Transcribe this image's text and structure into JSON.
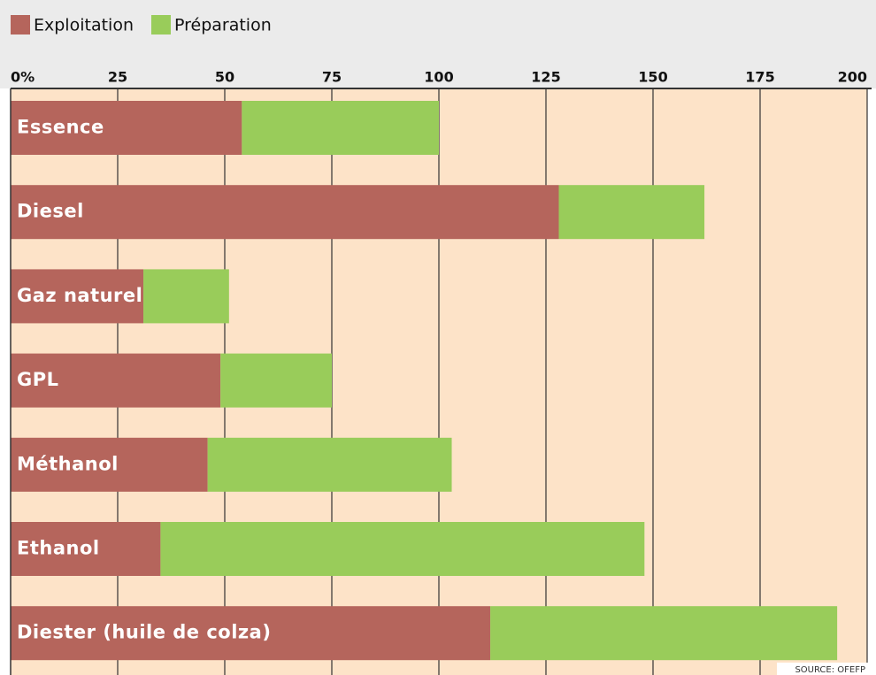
{
  "chart_data": {
    "type": "stacked-barh",
    "categories": [
      "Essence",
      "Diesel",
      "Gaz naturel",
      "GPL",
      "Méthanol",
      "Ethanol",
      "Diester (huile de colza)"
    ],
    "series": [
      {
        "name": "Exploitation",
        "color": "#b5655c",
        "values": [
          54,
          128,
          31,
          49,
          46,
          35,
          112
        ]
      },
      {
        "name": "Préparation",
        "color": "#99cc5a",
        "values": [
          46,
          34,
          20,
          26,
          57,
          113,
          81
        ]
      }
    ],
    "xlim": [
      0,
      200
    ],
    "xticks": [
      {
        "value": 0,
        "label": "0%"
      },
      25,
      50,
      75,
      100,
      125,
      150,
      175,
      200
    ],
    "grid": true,
    "source": "SOURCE: OFEFP"
  }
}
